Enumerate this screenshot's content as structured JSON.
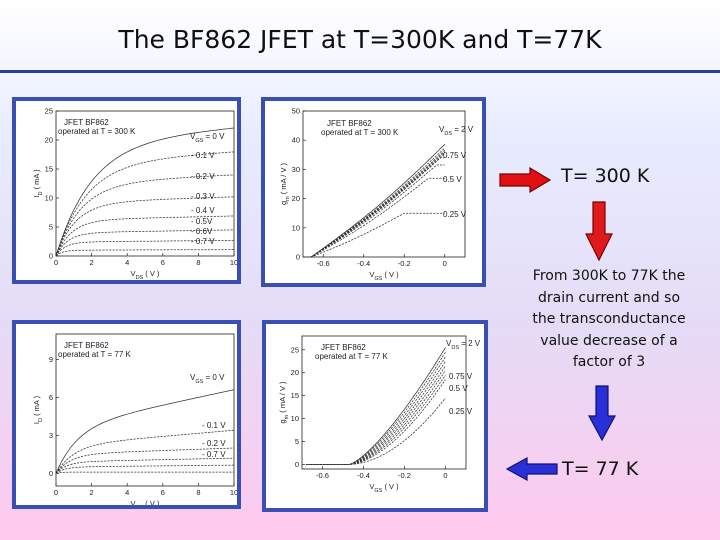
{
  "slide": {
    "title": "The BF862 JFET at T=300K and T=77K",
    "annotation_300": "T= 300 K",
    "annotation_77": "T= 77 K",
    "description": [
      "From 300K to 77K the",
      "drain current and so",
      "the transconductance",
      "value decrease of a",
      "factor of 3"
    ],
    "colors": {
      "arrow": "#e01010",
      "arrow_down": "#e01a1a",
      "arrow_blue": "#2a30d8",
      "panel_border": "#3a4fb4",
      "title_rule": "#2d3f9c"
    }
  },
  "chart_data": [
    {
      "id": "id-300",
      "type": "line",
      "legend_title": [
        "JFET  BF862",
        "operated at  T = 300 K"
      ],
      "xlabel": "V_DS ( V )",
      "ylabel": "I_D ( mA )",
      "xlim": [
        0,
        10
      ],
      "ylim": [
        0,
        25
      ],
      "xticks": [
        0,
        2,
        4,
        6,
        8,
        10
      ],
      "yticks": [
        0,
        5,
        10,
        15,
        20,
        25
      ],
      "series_labels": [
        "V_GS = 0 V",
        "- 0.1 V",
        "- 0.2 V",
        "- 0.3 V",
        "- 0.4 V",
        "- 0.5V",
        "- 0.6V",
        "- 0.7 V"
      ],
      "series": [
        {
          "vgs": 0.0,
          "sat": 19.5,
          "vk": 2.0,
          "slope": 0.27
        },
        {
          "vgs": -0.1,
          "sat": 16.0,
          "vk": 1.7,
          "slope": 0.2
        },
        {
          "vgs": -0.2,
          "sat": 12.5,
          "vk": 1.4,
          "slope": 0.15
        },
        {
          "vgs": -0.3,
          "sat": 9.2,
          "vk": 1.1,
          "slope": 0.1
        },
        {
          "vgs": -0.4,
          "sat": 6.2,
          "vk": 0.85,
          "slope": 0.07
        },
        {
          "vgs": -0.5,
          "sat": 4.0,
          "vk": 0.65,
          "slope": 0.05
        },
        {
          "vgs": -0.6,
          "sat": 2.4,
          "vk": 0.5,
          "slope": 0.03
        },
        {
          "vgs": -0.7,
          "sat": 1.0,
          "vk": 0.35,
          "slope": 0.01
        }
      ]
    },
    {
      "id": "gm-300",
      "type": "line",
      "legend_title": [
        "JFET  BF862",
        "operated at  T = 300 K"
      ],
      "xlabel": "V_GS ( V )",
      "ylabel": "g_m ( mA / V )",
      "xlim": [
        -0.7,
        0.1
      ],
      "ylim": [
        0,
        50
      ],
      "xticks": [
        -0.6,
        -0.4,
        -0.2,
        0
      ],
      "yticks": [
        0,
        10,
        20,
        30,
        40,
        50
      ],
      "series_labels": [
        "V_DS = 2 V",
        "0.75 V",
        "0.5 V",
        "0.25 V"
      ],
      "series": [
        {
          "gmax": 42,
          "vth": -0.66,
          "sat": 0.05
        },
        {
          "gmax": 40,
          "vth": -0.66,
          "sat": 0.04
        },
        {
          "gmax": 38.5,
          "vth": -0.66,
          "sat": 0.03
        },
        {
          "gmax": 37,
          "vth": -0.66,
          "sat": 0.015
        },
        {
          "gmax": 35.5,
          "vth": -0.66,
          "sat": 0.0
        },
        {
          "gmax": 34,
          "vth": -0.66,
          "sat": -0.02
        },
        {
          "gmax": 31.5,
          "vth": -0.66,
          "sat": -0.04
        },
        {
          "gmax": 27,
          "vth": -0.66,
          "sat": -0.08
        },
        {
          "gmax": 15,
          "vth": -0.66,
          "sat": -0.2
        }
      ]
    },
    {
      "id": "id-77",
      "type": "line",
      "legend_title": [
        "JFET  BF862",
        "operated at  T = 77 K"
      ],
      "xlabel": "V_DS ( V )",
      "ylabel": "I_D ( mA )",
      "xlim": [
        0,
        10
      ],
      "ylim": [
        -1,
        11
      ],
      "xticks": [
        0,
        2,
        4,
        6,
        8,
        10
      ],
      "yticks": [
        0,
        3,
        6,
        9
      ],
      "series_labels": [
        "V_GS = 0 V",
        "- 0.1 V",
        "- 0.2 V",
        "- 0.7 V"
      ],
      "series": [
        {
          "vgs": 0.0,
          "sat": 3.6,
          "vk": 1.2,
          "slope": 0.3
        },
        {
          "vgs": -0.1,
          "sat": 2.2,
          "vk": 1.0,
          "slope": 0.12
        },
        {
          "vgs": -0.2,
          "sat": 1.5,
          "vk": 0.8,
          "slope": 0.05
        },
        {
          "vgs": -0.3,
          "sat": 0.9,
          "vk": 0.6,
          "slope": 0.03
        },
        {
          "vgs": -0.4,
          "sat": 0.5,
          "vk": 0.5,
          "slope": 0.015
        },
        {
          "vgs": -0.7,
          "sat": 0.1,
          "vk": 0.3,
          "slope": 0.0
        }
      ]
    },
    {
      "id": "gm-77",
      "type": "line",
      "legend_title": [
        "JFET  BF862",
        "operated at  T = 77 K"
      ],
      "xlabel": "V_GS ( V )",
      "ylabel": "g_m ( mA / V )",
      "xlim": [
        -0.7,
        0.1
      ],
      "ylim": [
        -1,
        28
      ],
      "xticks": [
        -0.6,
        -0.4,
        -0.2,
        0
      ],
      "yticks": [
        0,
        5,
        10,
        15,
        20,
        25
      ],
      "series_labels": [
        "V_DS = 2 V",
        "0.75 V",
        "0.5 V",
        "0.25 V"
      ],
      "series": [
        {
          "gmax": 25.5,
          "vth": -0.47,
          "exp": 1.35
        },
        {
          "gmax": 24.5,
          "vth": -0.47,
          "exp": 1.38
        },
        {
          "gmax": 23.5,
          "vth": -0.47,
          "exp": 1.42
        },
        {
          "gmax": 22.5,
          "vth": -0.47,
          "exp": 1.46
        },
        {
          "gmax": 21.5,
          "vth": -0.47,
          "exp": 1.5
        },
        {
          "gmax": 20.5,
          "vth": -0.47,
          "exp": 1.55
        },
        {
          "gmax": 19.5,
          "vth": -0.47,
          "exp": 1.6
        },
        {
          "gmax": 18.5,
          "vth": -0.47,
          "exp": 1.68
        },
        {
          "gmax": 14.5,
          "vth": -0.47,
          "exp": 1.85
        }
      ]
    }
  ]
}
